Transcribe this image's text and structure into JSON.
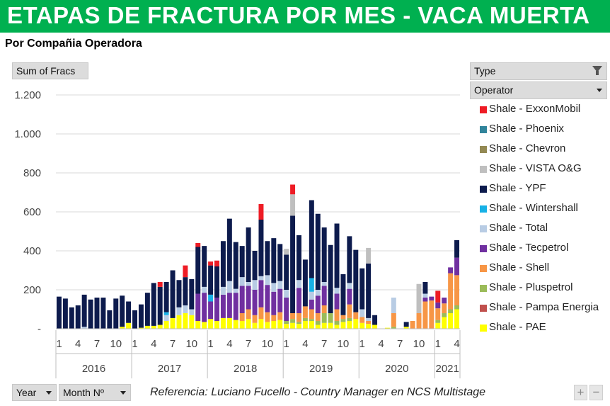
{
  "header": {
    "title": "ETAPAS DE FRACTURA POR MES -  VACA MUERTA",
    "subtitle": "Por Compañia Operadora"
  },
  "controls": {
    "value_field": "Sum of Fracs",
    "type_filter": "Type",
    "operator_filter": "Operator",
    "year_field": "Year",
    "month_field": "Month Nº",
    "zoom_in": "+",
    "zoom_out": "−"
  },
  "footer": {
    "reference": "Referencia: Luciano Fucello - Country Manager en NCS Multistage"
  },
  "colors": {
    "header_green": "#00b050"
  },
  "chart_data": {
    "type": "bar",
    "stacked": true,
    "ylim": [
      0,
      1200
    ],
    "yticks": [
      0,
      200,
      400,
      600,
      800,
      1000,
      1200
    ],
    "ytick_labels": [
      "-",
      "200",
      "400",
      "600",
      "800",
      "1.000",
      "1.200"
    ],
    "years": [
      {
        "label": "2016",
        "months": 12
      },
      {
        "label": "2017",
        "months": 12
      },
      {
        "label": "2018",
        "months": 12
      },
      {
        "label": "2019",
        "months": 12
      },
      {
        "label": "2020",
        "months": 12
      },
      {
        "label": "2021",
        "months": 4
      }
    ],
    "month_tick_labels": [
      "1",
      "4",
      "7",
      "10"
    ],
    "categories": [
      "2016-01",
      "2016-02",
      "2016-03",
      "2016-04",
      "2016-05",
      "2016-06",
      "2016-07",
      "2016-08",
      "2016-09",
      "2016-10",
      "2016-11",
      "2016-12",
      "2017-01",
      "2017-02",
      "2017-03",
      "2017-04",
      "2017-05",
      "2017-06",
      "2017-07",
      "2017-08",
      "2017-09",
      "2017-10",
      "2017-11",
      "2017-12",
      "2018-01",
      "2018-02",
      "2018-03",
      "2018-04",
      "2018-05",
      "2018-06",
      "2018-07",
      "2018-08",
      "2018-09",
      "2018-10",
      "2018-11",
      "2018-12",
      "2019-01",
      "2019-02",
      "2019-03",
      "2019-04",
      "2019-05",
      "2019-06",
      "2019-07",
      "2019-08",
      "2019-09",
      "2019-10",
      "2019-11",
      "2019-12",
      "2020-01",
      "2020-02",
      "2020-03",
      "2020-04",
      "2020-05",
      "2020-06",
      "2020-07",
      "2020-08",
      "2020-09",
      "2020-10",
      "2020-11",
      "2020-12",
      "2021-01",
      "2021-02",
      "2021-03",
      "2021-04"
    ],
    "series": [
      {
        "name": "Shale - PAE",
        "color": "#ffff00",
        "values": [
          0,
          0,
          0,
          0,
          0,
          0,
          0,
          0,
          0,
          0,
          10,
          30,
          0,
          5,
          15,
          15,
          20,
          40,
          55,
          70,
          80,
          70,
          40,
          35,
          50,
          40,
          55,
          55,
          45,
          40,
          50,
          30,
          50,
          35,
          40,
          45,
          25,
          30,
          25,
          40,
          40,
          20,
          30,
          30,
          20,
          35,
          40,
          50,
          30,
          25,
          20,
          0,
          5,
          0,
          0,
          10,
          0,
          0,
          0,
          0,
          30,
          60,
          80,
          100
        ]
      },
      {
        "name": "Shale - Pampa Energia",
        "color": "#c0504d",
        "values": [
          0,
          0,
          0,
          0,
          0,
          0,
          0,
          0,
          0,
          0,
          0,
          0,
          0,
          0,
          0,
          0,
          0,
          0,
          0,
          0,
          0,
          0,
          0,
          0,
          0,
          0,
          0,
          0,
          0,
          0,
          0,
          0,
          0,
          0,
          0,
          0,
          0,
          0,
          0,
          0,
          0,
          0,
          0,
          0,
          0,
          0,
          0,
          0,
          0,
          0,
          0,
          0,
          0,
          0,
          0,
          0,
          0,
          0,
          0,
          0,
          0,
          0,
          0,
          0
        ]
      },
      {
        "name": "Shale - Pluspetrol",
        "color": "#9bbb59",
        "values": [
          0,
          0,
          0,
          0,
          0,
          0,
          0,
          0,
          0,
          0,
          0,
          0,
          0,
          0,
          0,
          0,
          0,
          0,
          0,
          0,
          0,
          0,
          0,
          0,
          0,
          0,
          0,
          0,
          0,
          0,
          0,
          0,
          0,
          0,
          0,
          0,
          15,
          20,
          10,
          15,
          10,
          20,
          50,
          50,
          20,
          15,
          15,
          0,
          0,
          0,
          0,
          0,
          0,
          10,
          0,
          0,
          0,
          0,
          0,
          0,
          15,
          20,
          20,
          20
        ]
      },
      {
        "name": "Shale - Shell",
        "color": "#f79646",
        "values": [
          0,
          0,
          0,
          0,
          0,
          0,
          0,
          0,
          0,
          0,
          0,
          0,
          0,
          0,
          0,
          0,
          0,
          0,
          0,
          0,
          0,
          0,
          0,
          0,
          0,
          0,
          0,
          0,
          0,
          40,
          50,
          40,
          60,
          50,
          30,
          40,
          0,
          30,
          45,
          60,
          50,
          40,
          40,
          0,
          60,
          20,
          70,
          35,
          30,
          15,
          0,
          0,
          0,
          70,
          0,
          0,
          40,
          80,
          140,
          145,
          60,
          50,
          185,
          155
        ]
      },
      {
        "name": "Shale - Tecpetrol",
        "color": "#7030a0",
        "values": [
          0,
          0,
          0,
          0,
          0,
          0,
          0,
          0,
          0,
          0,
          0,
          0,
          0,
          0,
          0,
          0,
          0,
          0,
          0,
          0,
          0,
          0,
          140,
          150,
          90,
          120,
          120,
          130,
          140,
          140,
          120,
          130,
          140,
          140,
          120,
          120,
          120,
          0,
          130,
          0,
          50,
          90,
          100,
          0,
          80,
          0,
          80,
          0,
          0,
          0,
          0,
          0,
          0,
          0,
          0,
          0,
          0,
          0,
          20,
          20,
          30,
          30,
          30,
          90
        ]
      },
      {
        "name": "Shale - Total",
        "color": "#b8cce4",
        "values": [
          0,
          0,
          0,
          0,
          10,
          0,
          0,
          0,
          0,
          0,
          0,
          0,
          0,
          0,
          0,
          0,
          0,
          30,
          0,
          40,
          40,
          30,
          0,
          30,
          0,
          0,
          40,
          60,
          20,
          45,
          20,
          50,
          20,
          50,
          45,
          40,
          40,
          0,
          40,
          0,
          40,
          30,
          20,
          0,
          30,
          0,
          30,
          0,
          40,
          15,
          0,
          0,
          0,
          80,
          0,
          0,
          0,
          0,
          20,
          0,
          0,
          0,
          0,
          0
        ]
      },
      {
        "name": "Shale - Wintershall",
        "color": "#17b1e6",
        "values": [
          0,
          0,
          0,
          0,
          0,
          0,
          0,
          0,
          0,
          0,
          0,
          0,
          0,
          0,
          0,
          0,
          0,
          15,
          0,
          0,
          0,
          0,
          0,
          0,
          35,
          0,
          0,
          0,
          0,
          0,
          0,
          0,
          0,
          0,
          0,
          0,
          0,
          0,
          0,
          0,
          70,
          0,
          0,
          0,
          0,
          0,
          0,
          0,
          0,
          0,
          0,
          0,
          0,
          0,
          0,
          0,
          0,
          0,
          0,
          0,
          0,
          0,
          0,
          0
        ]
      },
      {
        "name": "Shale - YPF",
        "color": "#0d1b4d",
        "values": [
          165,
          155,
          110,
          120,
          165,
          150,
          160,
          160,
          95,
          155,
          160,
          110,
          95,
          120,
          170,
          220,
          195,
          155,
          245,
          140,
          145,
          155,
          240,
          210,
          150,
          160,
          235,
          320,
          240,
          160,
          280,
          150,
          290,
          175,
          230,
          190,
          180,
          500,
          230,
          240,
          400,
          390,
          280,
          350,
          330,
          210,
          240,
          320,
          210,
          280,
          50,
          0,
          0,
          0,
          0,
          25,
          0,
          0,
          60,
          0,
          0,
          0,
          0,
          90
        ]
      },
      {
        "name": "Shale - VISTA O&G",
        "color": "#bfbfbf",
        "values": [
          0,
          0,
          0,
          0,
          0,
          0,
          0,
          0,
          0,
          0,
          0,
          0,
          0,
          0,
          0,
          0,
          0,
          0,
          0,
          0,
          0,
          0,
          0,
          0,
          0,
          0,
          0,
          0,
          0,
          0,
          0,
          0,
          0,
          0,
          0,
          0,
          30,
          110,
          0,
          0,
          0,
          0,
          0,
          0,
          0,
          0,
          0,
          0,
          0,
          80,
          0,
          0,
          0,
          0,
          0,
          0,
          0,
          150,
          0,
          0,
          0,
          0,
          0,
          0
        ]
      },
      {
        "name": "Shale - Chevron",
        "color": "#938953",
        "values": [
          0,
          0,
          0,
          0,
          0,
          0,
          0,
          0,
          0,
          0,
          0,
          0,
          0,
          0,
          0,
          0,
          0,
          0,
          0,
          0,
          0,
          0,
          0,
          0,
          0,
          0,
          0,
          0,
          0,
          0,
          0,
          0,
          0,
          0,
          0,
          0,
          0,
          0,
          0,
          0,
          0,
          0,
          0,
          0,
          0,
          0,
          0,
          0,
          0,
          0,
          0,
          0,
          0,
          0,
          0,
          0,
          0,
          0,
          0,
          0,
          0,
          0,
          0,
          0
        ]
      },
      {
        "name": "Shale - Phoenix",
        "color": "#31849b",
        "values": [
          0,
          0,
          0,
          0,
          0,
          0,
          0,
          0,
          0,
          0,
          0,
          0,
          0,
          0,
          0,
          0,
          0,
          0,
          0,
          0,
          0,
          0,
          0,
          0,
          0,
          0,
          0,
          0,
          0,
          0,
          0,
          0,
          0,
          0,
          0,
          0,
          0,
          0,
          0,
          0,
          0,
          0,
          0,
          0,
          0,
          0,
          0,
          0,
          0,
          0,
          0,
          0,
          0,
          0,
          0,
          0,
          0,
          0,
          0,
          0,
          0,
          0,
          0,
          0
        ]
      },
      {
        "name": "Shale - ExxonMobil",
        "color": "#ee1c25",
        "values": [
          0,
          0,
          0,
          0,
          0,
          0,
          0,
          0,
          0,
          0,
          0,
          0,
          0,
          0,
          0,
          0,
          25,
          0,
          0,
          0,
          60,
          0,
          20,
          0,
          20,
          30,
          0,
          0,
          0,
          0,
          0,
          0,
          80,
          0,
          0,
          0,
          0,
          50,
          0,
          0,
          0,
          0,
          0,
          0,
          0,
          0,
          0,
          0,
          0,
          0,
          0,
          0,
          0,
          0,
          0,
          0,
          0,
          0,
          0,
          0,
          60,
          0,
          0,
          0
        ]
      }
    ],
    "legend_position": "right",
    "grid": true
  }
}
